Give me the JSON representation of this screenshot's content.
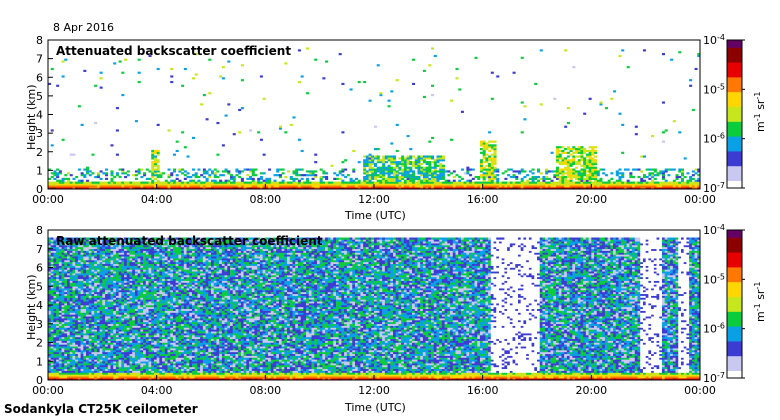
{
  "date": "8 Apr 2016",
  "footer": "Sodankyla CT25K ceilometer",
  "colorbar_colors": [
    "#ffffff",
    "#c8c8f0",
    "#3c3cd2",
    "#0aa0e6",
    "#0acc3c",
    "#c8e61e",
    "#ffd700",
    "#ff7800",
    "#e60000",
    "#8c0000",
    "#640064"
  ],
  "chart_data": [
    {
      "type": "heatmap",
      "title": "Attenuated backscatter coefficient",
      "xlabel": "Time (UTC)",
      "ylabel": "Height (km)",
      "xticks": [
        "00:00",
        "04:00",
        "08:00",
        "12:00",
        "16:00",
        "20:00",
        "00:00"
      ],
      "yticks": [
        "0",
        "1",
        "2",
        "3",
        "4",
        "5",
        "6",
        "7",
        "8"
      ],
      "xlim": [
        0,
        24
      ],
      "ylim": [
        0,
        8
      ],
      "colorbar": {
        "label": "m-1 sr-1",
        "scale": "log",
        "ticks": [
          "10-7",
          "10-6",
          "10-5",
          "10-4"
        ],
        "range": [
          1e-07,
          0.0001
        ]
      },
      "features": {
        "surface_layer": {
          "top_km": 0.4,
          "log10_value": -4.6
        },
        "cloud_columns": [
          {
            "t0": 3.75,
            "t1": 4.1,
            "top_km": 2.1,
            "log10_value": -5.6
          },
          {
            "t0": 11.5,
            "t1": 14.5,
            "top_km": 1.8,
            "log10_value": -5.8
          },
          {
            "t0": 15.8,
            "t1": 16.4,
            "top_km": 2.6,
            "log10_value": -5.5
          },
          {
            "t0": 18.6,
            "t1": 20.2,
            "top_km": 2.3,
            "log10_value": -5.5
          }
        ],
        "sparse_noise_top_km": 7.5
      }
    },
    {
      "type": "heatmap",
      "title": "Raw attenuated backscatter coefficient",
      "xlabel": "Time (UTC)",
      "ylabel": "Height (km)",
      "xticks": [
        "00:00",
        "04:00",
        "08:00",
        "12:00",
        "16:00",
        "20:00",
        "00:00"
      ],
      "yticks": [
        "0",
        "1",
        "2",
        "3",
        "4",
        "5",
        "6",
        "7",
        "8"
      ],
      "xlim": [
        0,
        24
      ],
      "ylim": [
        0,
        8
      ],
      "colorbar": {
        "label": "m-1 sr-1",
        "scale": "log",
        "ticks": [
          "10-7",
          "10-6",
          "10-5",
          "10-4"
        ],
        "range": [
          1e-07,
          0.0001
        ]
      },
      "features": {
        "noise_top_km": 7.5,
        "noise_log10_value": -6.2,
        "quiet_periods": [
          [
            16.2,
            18.0
          ],
          [
            21.8,
            22.6
          ],
          [
            23.2,
            23.6
          ]
        ],
        "surface_layer": {
          "top_km": 0.4,
          "log10_value": -4.6
        }
      }
    }
  ]
}
